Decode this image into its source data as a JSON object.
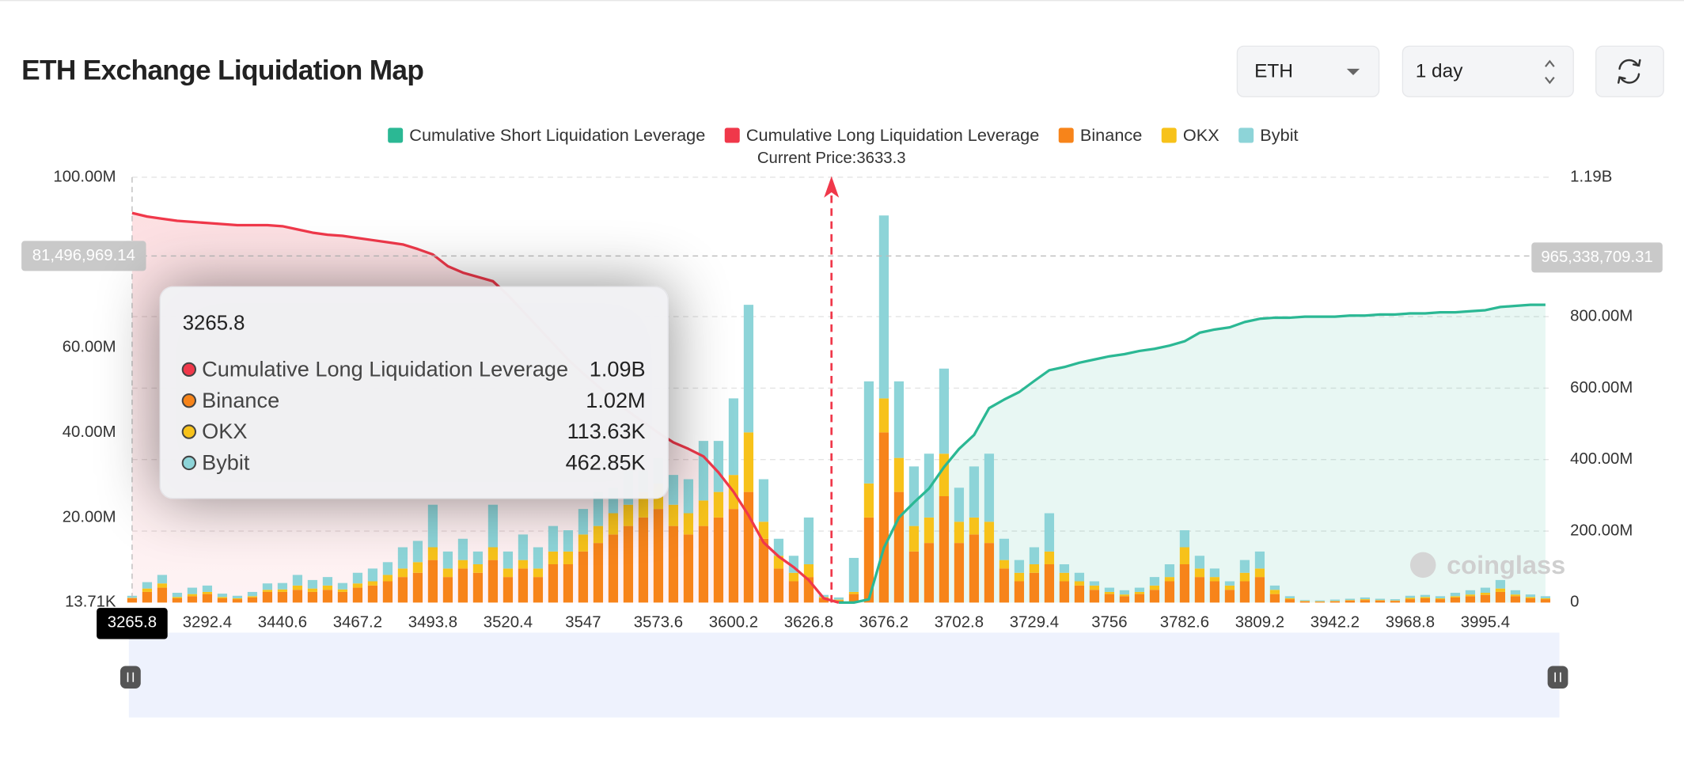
{
  "controls": {
    "symbol": "ETH",
    "range": "1 day"
  },
  "chart_data": {
    "type": "bar",
    "title": "ETH Exchange Liquidation Map",
    "watermark": "coinglass",
    "categories": [
      "3265.8",
      null,
      null,
      null,
      null,
      "3292.4",
      null,
      null,
      null,
      null,
      "3440.6",
      null,
      null,
      null,
      null,
      "3467.2",
      null,
      null,
      null,
      null,
      "3493.8",
      null,
      null,
      null,
      null,
      "3520.4",
      null,
      null,
      null,
      null,
      "3547",
      null,
      null,
      null,
      null,
      "3573.6",
      null,
      null,
      null,
      null,
      "3600.2",
      null,
      null,
      null,
      null,
      "3626.8",
      null,
      null,
      null,
      null,
      "3676.2",
      null,
      null,
      null,
      null,
      "3702.8",
      null,
      null,
      null,
      null,
      "3729.4",
      null,
      null,
      null,
      null,
      "3756",
      null,
      null,
      null,
      null,
      "3782.6",
      null,
      null,
      null,
      null,
      "3809.2",
      null,
      null,
      null,
      null,
      "3942.2",
      null,
      null,
      null,
      null,
      "3968.8",
      null,
      null,
      null,
      null,
      "3995.4",
      null,
      null,
      null,
      null
    ],
    "series": [
      {
        "name": "Cumulative Short Liquidation Leverage",
        "type": "line",
        "axis": "y2",
        "color": "#2bb894",
        "values": [
          null,
          null,
          null,
          null,
          null,
          null,
          null,
          null,
          null,
          null,
          null,
          null,
          null,
          null,
          null,
          null,
          null,
          null,
          null,
          null,
          null,
          null,
          null,
          null,
          null,
          null,
          null,
          null,
          null,
          null,
          null,
          null,
          null,
          null,
          null,
          null,
          null,
          null,
          null,
          null,
          null,
          null,
          null,
          null,
          null,
          null,
          null,
          0,
          0,
          9000000,
          153000000,
          238000000,
          280000000,
          319000000,
          379000000,
          430000000,
          469000000,
          544000000,
          568000000,
          589000000,
          620000000,
          650000000,
          659000000,
          671000000,
          680000000,
          689000000,
          695000000,
          704000000,
          710000000,
          719000000,
          731000000,
          755000000,
          764000000,
          770000000,
          785000000,
          794000000,
          797000000,
          797000000,
          800000000,
          800000000,
          800000000,
          803000000,
          803000000,
          806000000,
          806000000,
          809000000,
          809000000,
          812000000,
          812000000,
          815000000,
          818000000,
          827000000,
          830000000,
          833000000,
          833000000
        ]
      },
      {
        "name": "Cumulative Long Liquidation Leverage",
        "type": "line",
        "axis": "y2",
        "color": "#f0384a",
        "values": [
          1090000000,
          1080000000,
          1074000000,
          1068000000,
          1065000000,
          1062000000,
          1059000000,
          1056000000,
          1056000000,
          1056000000,
          1053000000,
          1044000000,
          1035000000,
          1029000000,
          1026000000,
          1020000000,
          1014000000,
          1008000000,
          1002000000,
          989000000,
          974000000,
          941000000,
          923000000,
          911000000,
          899000000,
          860000000,
          815000000,
          770000000,
          725000000,
          680000000,
          641000000,
          605000000,
          568000000,
          535000000,
          505000000,
          475000000,
          448000000,
          430000000,
          409000000,
          364000000,
          310000000,
          244000000,
          168000000,
          129000000,
          99000000,
          63000000,
          12000000,
          0,
          null,
          null,
          null,
          null,
          null,
          null,
          null,
          null,
          null,
          null,
          null,
          null,
          null,
          null,
          null,
          null,
          null,
          null,
          null,
          null,
          null,
          null,
          null,
          null,
          null,
          null,
          null,
          null,
          null,
          null,
          null,
          null,
          null,
          null,
          null,
          null,
          null,
          null,
          null,
          null,
          null,
          null,
          null,
          null,
          null,
          null,
          null
        ]
      },
      {
        "name": "Binance",
        "type": "bar",
        "color": "#f7841a",
        "values": [
          1020000,
          2500000,
          3500000,
          1000000,
          1500000,
          2000000,
          1000000,
          800000,
          1200000,
          2500000,
          2500000,
          3000000,
          2500000,
          3000000,
          2500000,
          3500000,
          4000000,
          5000000,
          6000000,
          7000000,
          10000000,
          6000000,
          8000000,
          7000000,
          10000000,
          6000000,
          8000000,
          6000000,
          9000000,
          9000000,
          12000000,
          14000000,
          16000000,
          18000000,
          20000000,
          22000000,
          18000000,
          16000000,
          18000000,
          20000000,
          22000000,
          26000000,
          15000000,
          8000000,
          5000000,
          6000000,
          1000000,
          500000,
          2000000,
          20000000,
          40000000,
          26000000,
          12000000,
          14000000,
          25000000,
          14000000,
          16000000,
          14000000,
          8000000,
          5000000,
          7000000,
          9000000,
          5000000,
          4000000,
          3000000,
          2000000,
          1500000,
          2000000,
          3000000,
          5000000,
          9000000,
          6000000,
          5000000,
          3000000,
          5000000,
          6000000,
          2000000,
          800000,
          300000,
          200000,
          300000,
          500000,
          600000,
          500000,
          400000,
          800000,
          1000000,
          800000,
          1200000,
          1500000,
          1800000,
          2500000,
          1500000,
          1000000,
          800000
        ]
      },
      {
        "name": "OKX",
        "type": "bar",
        "color": "#f7c21a",
        "values": [
          113630,
          800000,
          1000000,
          300000,
          500000,
          500000,
          300000,
          200000,
          300000,
          500000,
          600000,
          1000000,
          800000,
          1000000,
          600000,
          1000000,
          1000000,
          1500000,
          2000000,
          2500000,
          3000000,
          2000000,
          2000000,
          2000000,
          3000000,
          2000000,
          2000000,
          2000000,
          3000000,
          3000000,
          4000000,
          4000000,
          5000000,
          5000000,
          6000000,
          6000000,
          5000000,
          5000000,
          6000000,
          6000000,
          8000000,
          14000000,
          4000000,
          3000000,
          2000000,
          3000000,
          300000,
          200000,
          500000,
          8000000,
          8000000,
          8000000,
          6000000,
          6000000,
          10000000,
          5000000,
          4000000,
          5000000,
          2000000,
          2000000,
          2000000,
          3000000,
          2000000,
          1000000,
          1000000,
          500000,
          400000,
          500000,
          1000000,
          1000000,
          4000000,
          2000000,
          1000000,
          1000000,
          2000000,
          2000000,
          1000000,
          200000,
          100000,
          100000,
          100000,
          100000,
          200000,
          100000,
          100000,
          300000,
          300000,
          200000,
          300000,
          400000,
          500000,
          800000,
          400000,
          300000,
          200000
        ]
      },
      {
        "name": "Bybit",
        "type": "bar",
        "color": "#8dd4d8",
        "values": [
          462850,
          1500000,
          2000000,
          1000000,
          1500000,
          1500000,
          800000,
          600000,
          1000000,
          1500000,
          1500000,
          2500000,
          2000000,
          2000000,
          1500000,
          2500000,
          3000000,
          3000000,
          5000000,
          5000000,
          10000000,
          4000000,
          5000000,
          3000000,
          10000000,
          4000000,
          6000000,
          5000000,
          6000000,
          5000000,
          6000000,
          8000000,
          6000000,
          8000000,
          5000000,
          6000000,
          7000000,
          8000000,
          14000000,
          12000000,
          18000000,
          30000000,
          10000000,
          4000000,
          4000000,
          11000000,
          500000,
          500000,
          8000000,
          24000000,
          43000000,
          18000000,
          14000000,
          15000000,
          20000000,
          8000000,
          12000000,
          16000000,
          5000000,
          3000000,
          4000000,
          9000000,
          2000000,
          2000000,
          1000000,
          1000000,
          1000000,
          1000000,
          2000000,
          3000000,
          4000000,
          3000000,
          2000000,
          1000000,
          3000000,
          4000000,
          1000000,
          500000,
          200000,
          200000,
          300000,
          300000,
          400000,
          300000,
          300000,
          500000,
          500000,
          500000,
          800000,
          1000000,
          1200000,
          2000000,
          1000000,
          600000,
          500000
        ]
      }
    ],
    "ylim": [
      13710,
      100000000
    ],
    "yticks": [
      {
        "value": 13710,
        "label": "13.71K"
      },
      {
        "value": 20000000,
        "label": "20.00M"
      },
      {
        "value": 40000000,
        "label": "40.00M"
      },
      {
        "value": 60000000,
        "label": "60.00M"
      },
      {
        "value": 100000000,
        "label": "100.00M"
      }
    ],
    "y2lim": [
      0,
      1190000000
    ],
    "y2ticks": [
      0,
      {
        "value": 200000000,
        "label": "200.00M"
      },
      {
        "value": 400000000,
        "label": "400.00M"
      },
      {
        "value": 600000000,
        "label": "600.00M"
      },
      {
        "value": 800000000,
        "label": "800.00M"
      },
      {
        "value": 1190000000,
        "label": "1.19B"
      }
    ],
    "grid": "y2",
    "legend": "top",
    "current_price": {
      "value": 3633.3,
      "label": "Current Price:3633.3"
    },
    "pointer_labels": {
      "y": {
        "value": 81496969.14,
        "label": "81,496,969.14"
      },
      "y2": {
        "value": 965338709.31,
        "label": "965,338,709.31"
      }
    },
    "tooltip": {
      "title": "3265.8",
      "items": [
        {
          "name": "Cumulative Long Liquidation Leverage",
          "value": 1090000000,
          "label": "1.09B"
        },
        {
          "name": "Binance",
          "value": 1020000,
          "label": "1.02M"
        },
        {
          "name": "OKX",
          "value": 113630,
          "label": "113.63K"
        },
        {
          "name": "Bybit",
          "value": 462850,
          "label": "462.85K"
        }
      ]
    }
  }
}
